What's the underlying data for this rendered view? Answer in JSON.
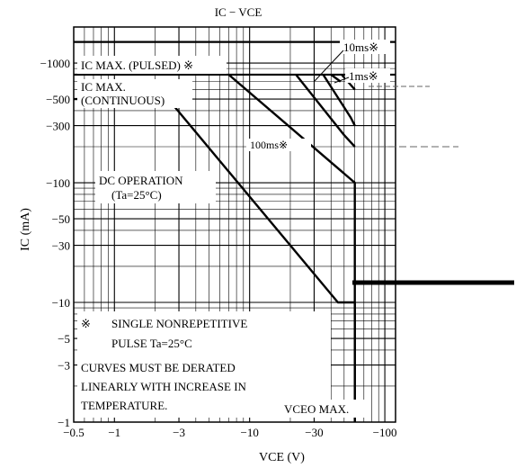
{
  "chart_data": {
    "type": "line",
    "title": "IC − VCE",
    "xlabel": "VCE (V)",
    "ylabel": "IC (mA)",
    "x_scale": "log",
    "y_scale": "log",
    "xlim": [
      -0.5,
      -120
    ],
    "ylim": [
      -1,
      -2000
    ],
    "x_ticks": [
      "−0.5",
      "−1",
      "−3",
      "−10",
      "−30",
      "−100"
    ],
    "y_ticks": [
      "−1000",
      "−500",
      "−300",
      "−100",
      "−50",
      "−30",
      "−10",
      "−5",
      "−3",
      "−1"
    ],
    "x_tick_values": [
      -0.5,
      -1,
      -3,
      -10,
      -30,
      -100
    ],
    "y_tick_values": [
      -1000,
      -500,
      -300,
      -100,
      -50,
      -30,
      -10,
      -5,
      -3,
      -1
    ],
    "grid": true,
    "series": [
      {
        "name": "DC OPERATION (Ta=25°C)",
        "x": [
          -0.5,
          -2.5,
          -45,
          -60,
          -60
        ],
        "y": [
          -500,
          -500,
          -10,
          -10,
          -1
        ]
      },
      {
        "name": "100ms※",
        "x": [
          -7,
          -60,
          -60
        ],
        "y": [
          -800,
          -100,
          -1
        ]
      },
      {
        "name": "10ms※",
        "x": [
          -22,
          -50,
          -60
        ],
        "y": [
          -800,
          -250,
          -200
        ]
      },
      {
        "name": "1ms※",
        "x": [
          -35,
          -56,
          -60
        ],
        "y": [
          -800,
          -350,
          -300
        ]
      },
      {
        "name": "",
        "x": [
          -48,
          -60
        ],
        "y": [
          -800,
          -600
        ]
      },
      {
        "name": "",
        "x": [
          -40,
          -47
        ],
        "y": [
          -800,
          -700
        ]
      }
    ],
    "limits": [
      {
        "name": "IC MAX. (PULSED) ※",
        "y": -1500
      },
      {
        "name": "IC MAX. (CONTINUOUS)",
        "y": -800
      },
      {
        "name": "VCEO MAX.",
        "x": -60
      }
    ],
    "annotations": {
      "pulsed": "IC MAX. (PULSED) ※",
      "continuous_1": "IC MAX.",
      "continuous_2": "(CONTINUOUS)",
      "dc_1": "DC OPERATION",
      "dc_2": "(Ta=25°C)",
      "ms10": "10ms※",
      "ms1": "1ms※",
      "ms100": "100ms※",
      "note_sym": "※",
      "note_1": "SINGLE NONREPETITIVE",
      "note_2": "PULSE Ta=25°C",
      "note_3": "CURVES MUST BE DERATED",
      "note_4": "LINEARLY WITH INCREASE IN",
      "note_5": "TEMPERATURE.",
      "vceo": "VCEO MAX."
    }
  }
}
